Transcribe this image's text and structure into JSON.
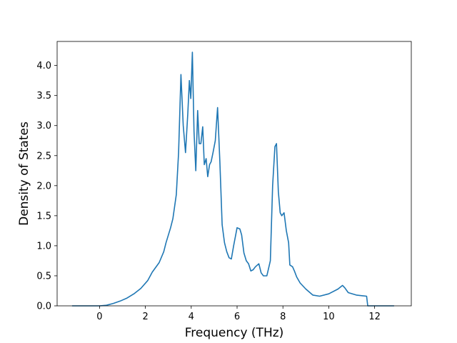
{
  "chart_data": {
    "type": "line",
    "title": "",
    "xlabel": "Frequency (THz)",
    "ylabel": "Density of States",
    "xlim": [
      -1.85,
      13.6
    ],
    "ylim": [
      0.0,
      4.4
    ],
    "xticks": [
      0,
      2,
      4,
      6,
      8,
      10,
      12
    ],
    "yticks": [
      0.0,
      0.5,
      1.0,
      1.5,
      2.0,
      2.5,
      3.0,
      3.5,
      4.0
    ],
    "grid": false,
    "line_color": "#1f77b4",
    "series": [
      {
        "x": [
          -1.2,
          -0.5,
          0.0,
          0.3,
          0.6,
          0.9,
          1.2,
          1.5,
          1.8,
          2.1,
          2.3,
          2.6,
          2.8,
          2.9,
          3.1,
          3.2,
          3.35,
          3.45,
          3.55,
          3.65,
          3.75,
          3.85,
          3.92,
          3.98,
          4.05,
          4.12,
          4.2,
          4.28,
          4.35,
          4.42,
          4.5,
          4.57,
          4.65,
          4.72,
          4.8,
          4.87,
          4.95,
          5.05,
          5.15,
          5.25,
          5.35,
          5.45,
          5.55,
          5.65,
          5.75,
          5.85,
          6.0,
          6.12,
          6.2,
          6.3,
          6.4,
          6.5,
          6.6,
          6.7,
          6.8,
          6.95,
          7.05,
          7.15,
          7.3,
          7.45,
          7.55,
          7.65,
          7.72,
          7.8,
          7.88,
          7.95,
          8.05,
          8.15,
          8.25,
          8.3,
          8.42,
          8.5,
          8.6,
          8.75,
          9.0,
          9.3,
          9.6,
          10.0,
          10.4,
          10.6,
          10.7,
          10.85,
          11.2,
          11.65,
          11.7,
          12.0,
          12.85
        ],
        "y": [
          0.0,
          0.0,
          0.0,
          0.01,
          0.04,
          0.08,
          0.13,
          0.2,
          0.29,
          0.42,
          0.56,
          0.72,
          0.9,
          1.05,
          1.3,
          1.45,
          1.85,
          2.55,
          3.85,
          3.0,
          2.55,
          3.2,
          3.75,
          3.45,
          4.22,
          2.9,
          2.25,
          3.25,
          2.7,
          2.7,
          2.98,
          2.35,
          2.45,
          2.15,
          2.35,
          2.4,
          2.55,
          2.75,
          3.3,
          2.4,
          1.35,
          1.05,
          0.9,
          0.8,
          0.78,
          1.0,
          1.3,
          1.28,
          1.18,
          0.88,
          0.75,
          0.7,
          0.58,
          0.6,
          0.65,
          0.7,
          0.55,
          0.5,
          0.5,
          0.75,
          2.0,
          2.65,
          2.7,
          1.9,
          1.55,
          1.5,
          1.55,
          1.25,
          1.05,
          0.68,
          0.65,
          0.58,
          0.48,
          0.38,
          0.28,
          0.18,
          0.16,
          0.2,
          0.28,
          0.34,
          0.3,
          0.22,
          0.18,
          0.16,
          0.0,
          0.0,
          0.0
        ]
      }
    ]
  }
}
